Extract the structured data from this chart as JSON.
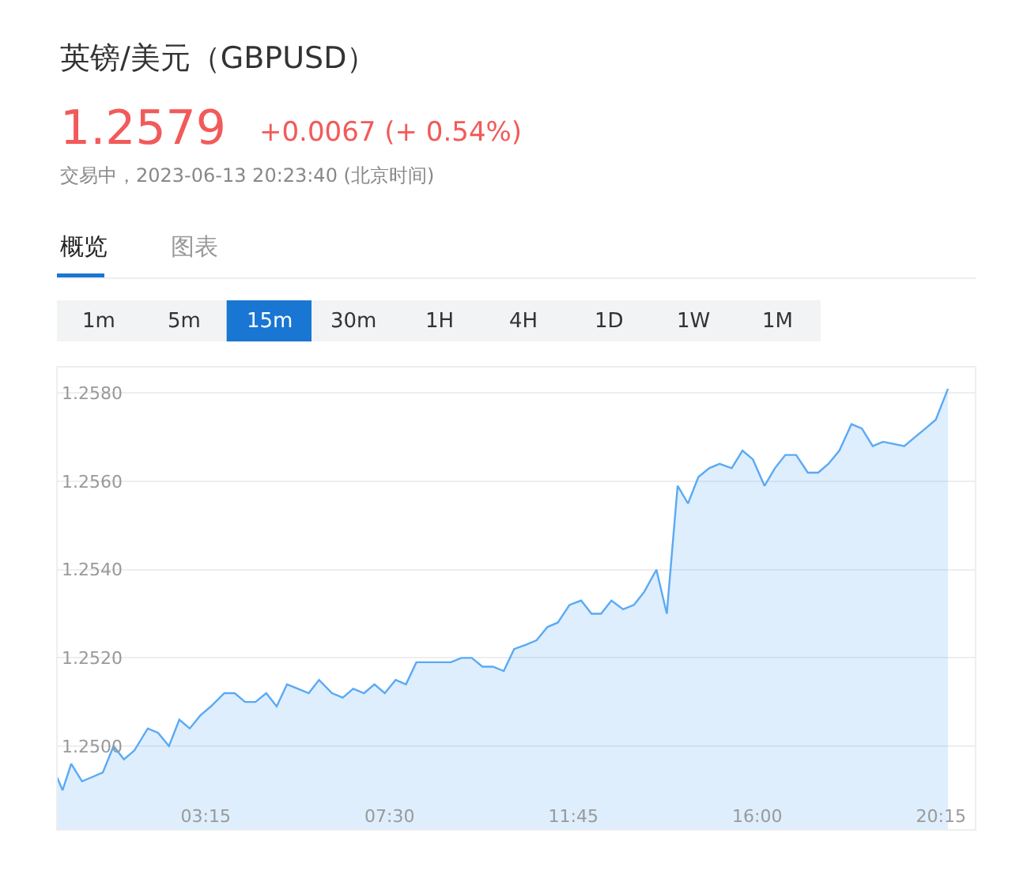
{
  "chart_data": {
    "type": "area",
    "title": "英镑/美元（GBPUSD）",
    "annotations": [
      "1.2579",
      "+0.0067 (+ 0.54%)",
      "交易中，2023-06-13 20:23:40 (北京时间)",
      "概览",
      "图表",
      "1m",
      "5m",
      "15m",
      "30m",
      "1H",
      "4H",
      "1D",
      "1W",
      "1M"
    ],
    "x": [
      -0.19,
      -0.06,
      0.14,
      0.39,
      0.63,
      0.87,
      1.12,
      1.36,
      1.6,
      1.91,
      2.15,
      2.4,
      2.64,
      2.88,
      3.13,
      3.37,
      3.68,
      3.92,
      4.16,
      4.4,
      4.65,
      4.89,
      5.13,
      5.38,
      5.63,
      5.87,
      6.17,
      6.42,
      6.66,
      6.91,
      7.15,
      7.39,
      7.64,
      7.88,
      8.12,
      8.37,
      8.92,
      9.16,
      9.4,
      9.65,
      9.89,
      10.14,
      10.38,
      10.66,
      10.9,
      11.15,
      11.39,
      11.66,
      11.93,
      12.17,
      12.39,
      12.63,
      12.9,
      13.15,
      13.39,
      13.67,
      13.91,
      14.16,
      14.4,
      14.64,
      14.89,
      15.13,
      15.41,
      15.66,
      15.9,
      16.17,
      16.41,
      16.65,
      16.9,
      17.17,
      17.41,
      17.65,
      17.9,
      18.18,
      18.42,
      18.67,
      18.91,
      19.4,
      19.64,
      19.89,
      20.13,
      20.41
    ],
    "series": [
      {
        "color": "#5aa9f5",
        "values": [
          1.2493,
          1.249,
          1.2496,
          1.2492,
          1.2493,
          1.2494,
          1.25,
          1.2497,
          1.2499,
          1.2504,
          1.2503,
          1.25,
          1.2506,
          1.2504,
          1.2507,
          1.2509,
          1.2512,
          1.2512,
          1.251,
          1.251,
          1.2512,
          1.2509,
          1.2514,
          1.2513,
          1.2512,
          1.2515,
          1.2512,
          1.2511,
          1.2513,
          1.2512,
          1.2514,
          1.2512,
          1.2515,
          1.2514,
          1.2519,
          1.2519,
          1.2519,
          1.252,
          1.252,
          1.2518,
          1.2518,
          1.2517,
          1.2522,
          1.2523,
          1.2524,
          1.2527,
          1.2528,
          1.2532,
          1.2533,
          1.253,
          1.253,
          1.2533,
          1.2531,
          1.2532,
          1.2535,
          1.254,
          1.253,
          1.2559,
          1.2555,
          1.2561,
          1.2563,
          1.2564,
          1.2563,
          1.2567,
          1.2565,
          1.2559,
          1.2563,
          1.2566,
          1.2566,
          1.2562,
          1.2562,
          1.2564,
          1.2567,
          1.2573,
          1.2572,
          1.2568,
          1.2569,
          1.2568,
          1.257,
          1.2572,
          1.2574,
          1.2581
        ]
      }
    ],
    "xlim": [
      -0.19,
      21.05
    ],
    "ylim": [
      1.2481,
      1.2586
    ],
    "xticks": [
      {
        "value": 3.25,
        "label": "03:15"
      },
      {
        "value": 7.5,
        "label": "07:30"
      },
      {
        "value": 11.75,
        "label": "11:45"
      },
      {
        "value": 16,
        "label": "16:00"
      },
      {
        "value": 20.25,
        "label": "20:15"
      }
    ],
    "yticks": [
      {
        "value": 1.25,
        "label": "1.2500"
      },
      {
        "value": 1.252,
        "label": "1.2520"
      },
      {
        "value": 1.254,
        "label": "1.2540"
      },
      {
        "value": 1.256,
        "label": "1.2560"
      },
      {
        "value": 1.258,
        "label": "1.2580"
      }
    ],
    "grid": "y"
  }
}
